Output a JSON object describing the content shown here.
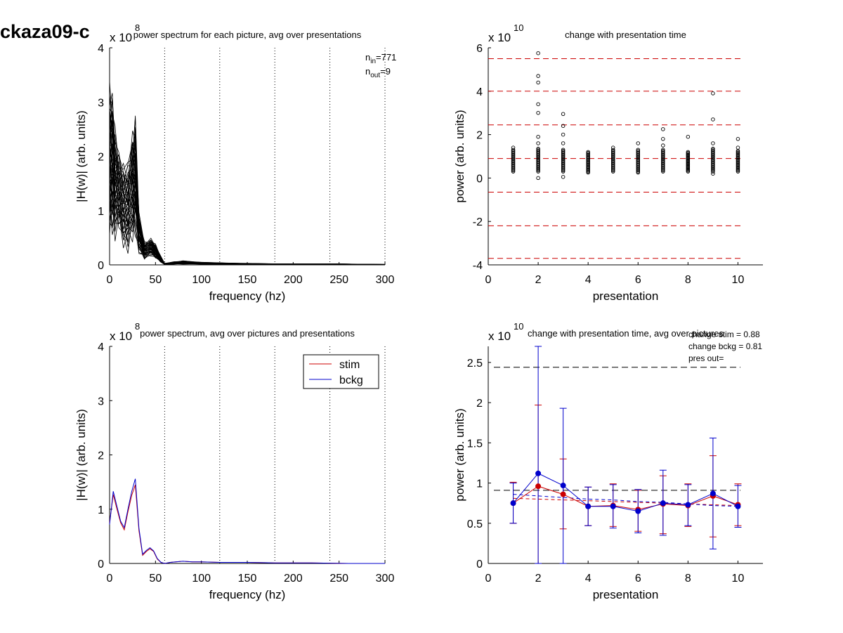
{
  "figure_label": "ckaza09-c",
  "chart_data": [
    {
      "type": "line",
      "title": "power spectrum for each picture, avg over presentations",
      "xlabel": "frequency (hz)",
      "ylabel": "|H(w)| (arb. units)",
      "xlim": [
        0,
        300
      ],
      "ylim": [
        0,
        4
      ],
      "x_ticks": [
        0,
        50,
        100,
        150,
        200,
        250,
        300
      ],
      "y_ticks": [
        0,
        1,
        2,
        3,
        4
      ],
      "y_multiplier": {
        "base": "x 10",
        "exponent": "8"
      },
      "vertical_reference_lines": [
        60,
        120,
        180,
        240,
        300
      ],
      "annotation": {
        "n_in_sym": "n",
        "n_in_sub": "in",
        "n_in_val": "=771",
        "n_out_sym": "n",
        "n_out_sub": "out",
        "n_out_val": "=9"
      },
      "series_description": "many overlapping black traces",
      "envelope": {
        "x": [
          0,
          3,
          6,
          10,
          15,
          20,
          25,
          28,
          32,
          38,
          45,
          50,
          55,
          60,
          70,
          80,
          100,
          150,
          200,
          250,
          300
        ],
        "upper": [
          3.5,
          3.45,
          2.6,
          2.2,
          2.0,
          2.0,
          2.6,
          2.9,
          1.0,
          0.45,
          0.5,
          0.4,
          0.2,
          0.03,
          0.06,
          0.08,
          0.05,
          0.03,
          0.02,
          0.02,
          0.01
        ],
        "lower": [
          0.3,
          0.35,
          0.4,
          0.55,
          0.25,
          0.15,
          0.3,
          0.4,
          0.15,
          0.08,
          0.15,
          0.1,
          0.05,
          0.0,
          0.01,
          0.01,
          0.01,
          0.0,
          0.0,
          0.0,
          0.0
        ]
      },
      "line_color": "#000000"
    },
    {
      "type": "scatter",
      "title": "change with presentation time",
      "xlabel": "presentation",
      "ylabel": "power (arb. units)",
      "xlim": [
        0,
        11
      ],
      "ylim": [
        -4,
        6
      ],
      "x_ticks": [
        0,
        2,
        4,
        6,
        8,
        10
      ],
      "y_ticks": [
        -4,
        -2,
        0,
        2,
        4,
        6
      ],
      "y_multiplier": {
        "base": "x 10",
        "exponent": "10"
      },
      "horizontal_reference_lines": [
        5.5,
        4.0,
        2.45,
        0.9,
        -0.65,
        -2.2,
        -3.7
      ],
      "reference_line_color": "#cc0000",
      "cluster": {
        "x": [
          1,
          2,
          3,
          4,
          5,
          6,
          7,
          8,
          9,
          10
        ],
        "low": [
          0.3,
          0.3,
          0.3,
          0.25,
          0.3,
          0.25,
          0.3,
          0.3,
          0.3,
          0.3
        ],
        "high": [
          1.3,
          1.35,
          1.3,
          1.2,
          1.3,
          1.3,
          1.3,
          1.2,
          1.35,
          1.25
        ]
      },
      "outliers": [
        {
          "x": 1,
          "y": 1.4
        },
        {
          "x": 2,
          "y": 5.75
        },
        {
          "x": 2,
          "y": 4.7
        },
        {
          "x": 2,
          "y": 4.4
        },
        {
          "x": 2,
          "y": 3.4
        },
        {
          "x": 2,
          "y": 3.0
        },
        {
          "x": 2,
          "y": 1.9
        },
        {
          "x": 2,
          "y": 1.6
        },
        {
          "x": 2,
          "y": 0.0
        },
        {
          "x": 3,
          "y": 2.95
        },
        {
          "x": 3,
          "y": 2.4
        },
        {
          "x": 3,
          "y": 2.0
        },
        {
          "x": 3,
          "y": 1.6
        },
        {
          "x": 3,
          "y": 0.05
        },
        {
          "x": 5,
          "y": 1.4
        },
        {
          "x": 6,
          "y": 1.6
        },
        {
          "x": 7,
          "y": 2.25
        },
        {
          "x": 7,
          "y": 1.8
        },
        {
          "x": 7,
          "y": 1.5
        },
        {
          "x": 8,
          "y": 1.9
        },
        {
          "x": 9,
          "y": 3.9
        },
        {
          "x": 9,
          "y": 2.7
        },
        {
          "x": 9,
          "y": 1.6
        },
        {
          "x": 9,
          "y": 0.2
        },
        {
          "x": 10,
          "y": 1.8
        },
        {
          "x": 10,
          "y": 1.4
        }
      ],
      "marker_color": "#000000"
    },
    {
      "type": "line",
      "title": "power spectrum, avg over pictures and presentations",
      "xlabel": "frequency (hz)",
      "ylabel": "|H(w)| (arb. units)",
      "xlim": [
        0,
        300
      ],
      "ylim": [
        0,
        4
      ],
      "x_ticks": [
        0,
        50,
        100,
        150,
        200,
        250,
        300
      ],
      "y_ticks": [
        0,
        1,
        2,
        3,
        4
      ],
      "y_multiplier": {
        "base": "x 10",
        "exponent": "8"
      },
      "vertical_reference_lines": [
        60,
        120,
        180,
        240,
        300
      ],
      "legend": {
        "position": "top-right",
        "entries": [
          "stim",
          "bckg"
        ]
      },
      "x": [
        0,
        4,
        8,
        12,
        16,
        20,
        24,
        28,
        32,
        36,
        40,
        44,
        48,
        52,
        56,
        60,
        66,
        72,
        80,
        90,
        100,
        120,
        150,
        180,
        220,
        260,
        300
      ],
      "series": [
        {
          "name": "stim",
          "color": "#cc0000",
          "values": [
            0.75,
            1.27,
            1.0,
            0.75,
            0.62,
            0.95,
            1.25,
            1.45,
            0.6,
            0.15,
            0.22,
            0.27,
            0.22,
            0.08,
            0.02,
            0.0,
            0.02,
            0.03,
            0.04,
            0.03,
            0.03,
            0.02,
            0.02,
            0.01,
            0.01,
            0.0,
            0.0
          ]
        },
        {
          "name": "bckg",
          "color": "#0000cc",
          "values": [
            0.72,
            1.33,
            1.05,
            0.78,
            0.66,
            1.0,
            1.32,
            1.56,
            0.65,
            0.17,
            0.24,
            0.29,
            0.23,
            0.09,
            0.02,
            0.0,
            0.02,
            0.03,
            0.04,
            0.03,
            0.03,
            0.02,
            0.02,
            0.01,
            0.01,
            0.0,
            0.0
          ]
        }
      ]
    },
    {
      "type": "line",
      "title": "change with presentation time, avg over pictures",
      "xlabel": "presentation",
      "ylabel": "power (arb. units)",
      "xlim": [
        0,
        11
      ],
      "ylim": [
        0,
        2.7
      ],
      "x_ticks": [
        0,
        2,
        4,
        6,
        8,
        10
      ],
      "y_ticks": [
        0,
        0.5,
        1,
        1.5,
        2,
        2.5
      ],
      "y_multiplier": {
        "base": "x 10",
        "exponent": "10"
      },
      "annotations": [
        "change stim = 0.88",
        "change bckg = 0.81",
        "pres out="
      ],
      "horizontal_reference_lines": [
        2.44,
        0.91
      ],
      "x": [
        1,
        2,
        3,
        4,
        5,
        6,
        7,
        8,
        9,
        10
      ],
      "series": [
        {
          "name": "stim",
          "color": "#cc0000",
          "values": [
            0.75,
            0.96,
            0.86,
            0.71,
            0.72,
            0.67,
            0.74,
            0.72,
            0.84,
            0.73
          ],
          "err_low": [
            0.5,
            0.0,
            0.43,
            0.47,
            0.46,
            0.4,
            0.37,
            0.46,
            0.33,
            0.47
          ],
          "err_high": [
            1.01,
            1.97,
            1.3,
            0.95,
            0.99,
            0.91,
            1.09,
            0.99,
            1.34,
            0.99
          ],
          "trend": [
            0.81,
            0.8,
            0.79,
            0.78,
            0.77,
            0.76,
            0.75,
            0.74,
            0.73,
            0.72
          ]
        },
        {
          "name": "bckg",
          "color": "#0000cc",
          "values": [
            0.75,
            1.12,
            0.97,
            0.71,
            0.71,
            0.65,
            0.75,
            0.73,
            0.87,
            0.71
          ],
          "err_low": [
            0.5,
            0.0,
            0.0,
            0.47,
            0.44,
            0.38,
            0.35,
            0.47,
            0.18,
            0.45
          ],
          "err_high": [
            1.0,
            2.7,
            1.93,
            0.95,
            0.98,
            0.92,
            1.16,
            0.98,
            1.56,
            0.97
          ],
          "trend": [
            0.86,
            0.84,
            0.82,
            0.8,
            0.79,
            0.77,
            0.76,
            0.74,
            0.72,
            0.71
          ]
        }
      ]
    }
  ]
}
